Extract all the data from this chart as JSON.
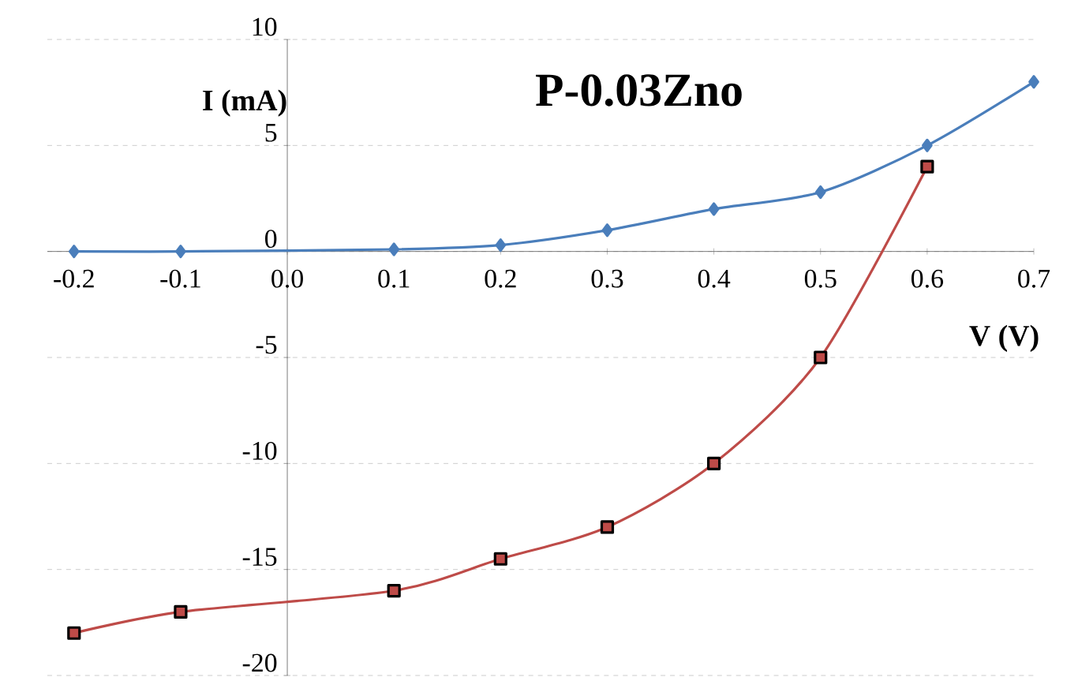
{
  "chart_data": {
    "type": "line",
    "title": "P-0.03Zno",
    "xlabel": "V (V)",
    "ylabel": "I (mA)",
    "xlim": [
      -0.225,
      0.7
    ],
    "ylim": [
      -20,
      10
    ],
    "xticks": [
      -0.2,
      -0.1,
      {
        "value": 0,
        "label": "0.0"
      },
      0.1,
      0.2,
      0.3,
      0.4,
      0.5,
      0.6,
      0.7
    ],
    "yticks": [
      -20,
      -15,
      -10,
      -5,
      0,
      5,
      10
    ],
    "grid": "y",
    "line_style": "solid",
    "series": [
      {
        "color": "#4a7ebb",
        "marker": "diamond",
        "x": [
          -0.2,
          -0.1,
          0.1,
          0.2,
          0.3,
          0.4,
          0.5,
          0.6,
          0.7
        ],
        "values": [
          0,
          0,
          0.1,
          0.3,
          1,
          2,
          2.8,
          5,
          8
        ]
      },
      {
        "color": "#be4b48",
        "marker": "square",
        "x": [
          -0.2,
          -0.1,
          0.1,
          0.2,
          0.3,
          0.4,
          0.5,
          0.6
        ],
        "values": [
          -18,
          -17,
          -16,
          -14.5,
          -13,
          -10,
          -5,
          4
        ]
      }
    ]
  }
}
